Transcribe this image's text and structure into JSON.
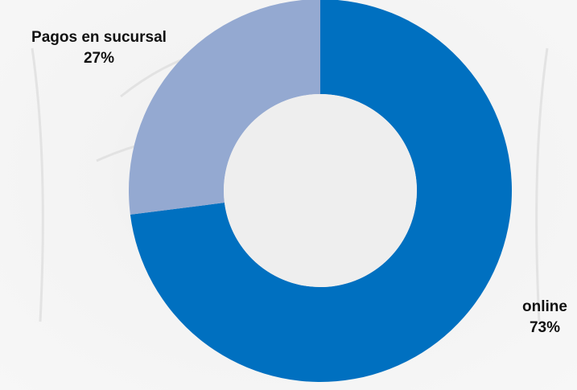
{
  "chart_data": {
    "type": "pie",
    "variant": "donut",
    "start_angle_deg": 0,
    "direction": "clockwise",
    "slices": [
      {
        "label": "online",
        "value": 73,
        "value_label": "73%",
        "color": "#0070c0"
      },
      {
        "label": "Pagos en sucursal",
        "value": 27,
        "value_label": "27%",
        "color": "#94a9d1"
      }
    ],
    "title": "",
    "legend": "none",
    "data_labels": "outside"
  },
  "labels": {
    "online_name": "online",
    "online_value": "73%",
    "branch_name": "Pagos en sucursal",
    "branch_value": "27%"
  }
}
